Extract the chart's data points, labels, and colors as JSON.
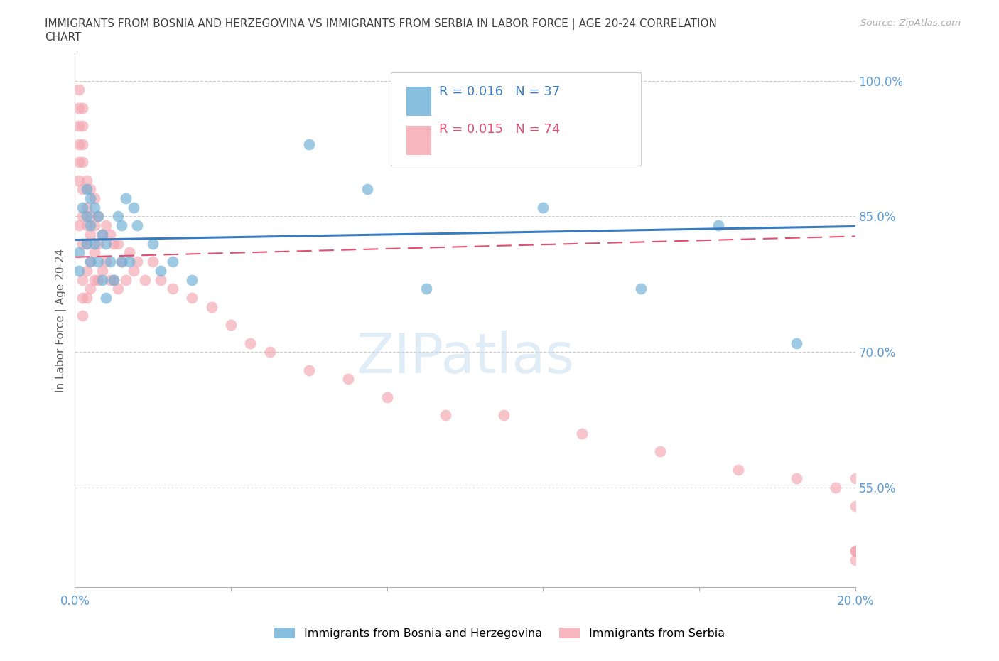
{
  "title_line1": "IMMIGRANTS FROM BOSNIA AND HERZEGOVINA VS IMMIGRANTS FROM SERBIA IN LABOR FORCE | AGE 20-24 CORRELATION",
  "title_line2": "CHART",
  "source": "Source: ZipAtlas.com",
  "ylabel": "In Labor Force | Age 20-24",
  "xlim": [
    0.0,
    0.2
  ],
  "ylim": [
    0.44,
    1.03
  ],
  "right_yticks": [
    1.0,
    0.85,
    0.7,
    0.55
  ],
  "right_yticklabels": [
    "100.0%",
    "85.0%",
    "70.0%",
    "55.0%"
  ],
  "xticks": [
    0.0,
    0.04,
    0.08,
    0.12,
    0.16,
    0.2
  ],
  "bosnia_color": "#6baed6",
  "serbia_color": "#f4a5b0",
  "bosnia_R": "0.016",
  "bosnia_N": "37",
  "serbia_R": "0.015",
  "serbia_N": "74",
  "legend_bosnia": "Immigrants from Bosnia and Herzegovina",
  "legend_serbia": "Immigrants from Serbia",
  "bosnia_x": [
    0.001,
    0.001,
    0.002,
    0.003,
    0.003,
    0.003,
    0.004,
    0.004,
    0.004,
    0.005,
    0.005,
    0.006,
    0.006,
    0.007,
    0.007,
    0.008,
    0.008,
    0.009,
    0.01,
    0.011,
    0.012,
    0.012,
    0.013,
    0.014,
    0.015,
    0.016,
    0.02,
    0.022,
    0.025,
    0.03,
    0.06,
    0.075,
    0.09,
    0.12,
    0.145,
    0.165,
    0.185
  ],
  "bosnia_y": [
    0.81,
    0.79,
    0.86,
    0.88,
    0.85,
    0.82,
    0.87,
    0.84,
    0.8,
    0.86,
    0.82,
    0.85,
    0.8,
    0.83,
    0.78,
    0.82,
    0.76,
    0.8,
    0.78,
    0.85,
    0.84,
    0.8,
    0.87,
    0.8,
    0.86,
    0.84,
    0.82,
    0.79,
    0.8,
    0.78,
    0.93,
    0.88,
    0.77,
    0.86,
    0.77,
    0.84,
    0.71
  ],
  "serbia_x": [
    0.001,
    0.001,
    0.001,
    0.001,
    0.001,
    0.001,
    0.001,
    0.002,
    0.002,
    0.002,
    0.002,
    0.002,
    0.002,
    0.002,
    0.002,
    0.002,
    0.002,
    0.003,
    0.003,
    0.003,
    0.003,
    0.003,
    0.003,
    0.004,
    0.004,
    0.004,
    0.004,
    0.004,
    0.005,
    0.005,
    0.005,
    0.005,
    0.006,
    0.006,
    0.006,
    0.007,
    0.007,
    0.008,
    0.008,
    0.009,
    0.009,
    0.01,
    0.01,
    0.011,
    0.011,
    0.012,
    0.013,
    0.014,
    0.015,
    0.016,
    0.018,
    0.02,
    0.022,
    0.025,
    0.03,
    0.035,
    0.04,
    0.045,
    0.05,
    0.06,
    0.07,
    0.08,
    0.095,
    0.11,
    0.13,
    0.15,
    0.17,
    0.185,
    0.195,
    0.2,
    0.2,
    0.2,
    0.2,
    0.2
  ],
  "serbia_y": [
    0.99,
    0.97,
    0.95,
    0.93,
    0.91,
    0.89,
    0.84,
    0.97,
    0.95,
    0.93,
    0.91,
    0.88,
    0.85,
    0.82,
    0.78,
    0.76,
    0.74,
    0.89,
    0.86,
    0.84,
    0.82,
    0.79,
    0.76,
    0.88,
    0.85,
    0.83,
    0.8,
    0.77,
    0.87,
    0.84,
    0.81,
    0.78,
    0.85,
    0.82,
    0.78,
    0.83,
    0.79,
    0.84,
    0.8,
    0.83,
    0.78,
    0.82,
    0.78,
    0.82,
    0.77,
    0.8,
    0.78,
    0.81,
    0.79,
    0.8,
    0.78,
    0.8,
    0.78,
    0.77,
    0.76,
    0.75,
    0.73,
    0.71,
    0.7,
    0.68,
    0.67,
    0.65,
    0.63,
    0.63,
    0.61,
    0.59,
    0.57,
    0.56,
    0.55,
    0.53,
    0.56,
    0.48,
    0.48,
    0.47
  ],
  "bosnia_trend_x": [
    0.0,
    0.2
  ],
  "bosnia_trend_y": [
    0.824,
    0.839
  ],
  "serbia_trend_x": [
    0.0,
    0.2
  ],
  "serbia_trend_y": [
    0.805,
    0.828
  ],
  "watermark": "ZIPatlas",
  "bg_color": "#ffffff",
  "grid_color": "#cccccc",
  "tick_color": "#5b9bd5",
  "title_color": "#404040",
  "axis_label_color": "#606060"
}
